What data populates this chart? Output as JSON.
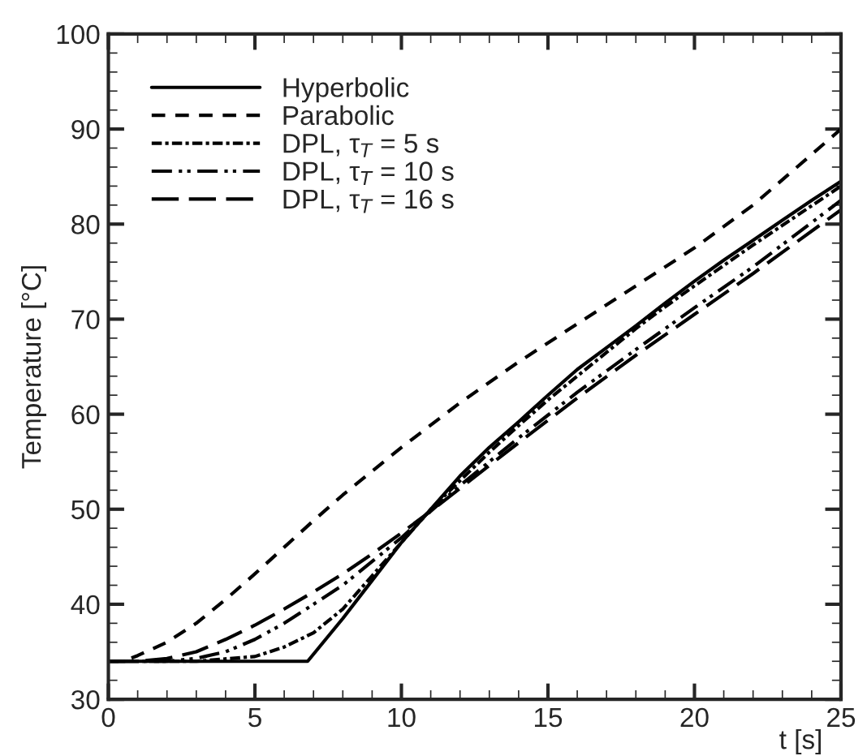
{
  "chart_data": {
    "type": "line",
    "xlabel": "t [s]",
    "ylabel": "Temperature [°C]",
    "xlim": [
      0,
      25
    ],
    "xticks": [
      0,
      5,
      10,
      15,
      20,
      25
    ],
    "ylim": [
      30,
      100
    ],
    "yticks": [
      30,
      40,
      50,
      60,
      70,
      80,
      90,
      100
    ],
    "grid": false,
    "legend": "top left",
    "marker": "none",
    "series": [
      {
        "name": "Hyperbolic",
        "color": "#000000",
        "line_style": "solid",
        "x": [
          0,
          6.8,
          8,
          9,
          10,
          11,
          12,
          13,
          14,
          15,
          16,
          17,
          18,
          19,
          20,
          21,
          22,
          23,
          24,
          25
        ],
        "values": [
          34,
          34,
          38.5,
          42.5,
          46.5,
          50,
          53.5,
          56.5,
          59.2,
          62,
          64.7,
          67,
          69.3,
          71.7,
          74,
          76.2,
          78.3,
          80.4,
          82.5,
          84.5
        ]
      },
      {
        "name": "Parabolic",
        "color": "#000000",
        "line_style": "dashed",
        "x": [
          0,
          0.5,
          1,
          2,
          3,
          4,
          5,
          6,
          7,
          8,
          9,
          10,
          12,
          14,
          16,
          18,
          20,
          22,
          25
        ],
        "values": [
          34,
          34,
          34.6,
          36,
          38,
          40.5,
          43.2,
          46,
          48.8,
          51.5,
          54,
          56.5,
          61.2,
          65.5,
          69.5,
          73.5,
          77.5,
          82,
          90
        ]
      },
      {
        "name": "DPL, τ$_{T}$ = 5 s",
        "color": "#000000",
        "line_style": "dashdot",
        "x": [
          0,
          3,
          5,
          6,
          7,
          8,
          9,
          10,
          11,
          12,
          13,
          14,
          15,
          16,
          17,
          18,
          19,
          20,
          22,
          25
        ],
        "values": [
          34,
          34,
          34.5,
          35.5,
          37,
          39.5,
          43,
          46.5,
          50,
          53,
          56,
          58.8,
          61.5,
          64,
          66.5,
          69,
          71.3,
          73.5,
          77.8,
          84
        ]
      },
      {
        "name": "DPL, τ$_{T}$ = 10 s",
        "color": "#000000",
        "line_style": "dashdotdot",
        "x": [
          0,
          2,
          3,
          4,
          5,
          6,
          7,
          8,
          9,
          10,
          11,
          12,
          14,
          16,
          18,
          20,
          22,
          25
        ],
        "values": [
          34,
          34,
          34.3,
          35,
          36.3,
          38,
          40,
          42,
          44.5,
          47,
          49.8,
          52.5,
          57.5,
          62.3,
          66.8,
          71.2,
          75.5,
          82.5
        ]
      },
      {
        "name": "DPL, τ$_{T}$ = 16 s",
        "color": "#000000",
        "line_style": "longdash",
        "x": [
          0,
          1,
          2,
          3,
          4,
          5,
          6,
          7,
          8,
          9,
          10,
          11,
          12,
          14,
          16,
          18,
          20,
          22,
          25
        ],
        "values": [
          34,
          34,
          34.3,
          35,
          36.3,
          37.8,
          39.5,
          41.3,
          43.2,
          45.3,
          47.5,
          49.8,
          52.2,
          57,
          61.7,
          66.2,
          70.5,
          74.8,
          81.5
        ]
      }
    ]
  }
}
